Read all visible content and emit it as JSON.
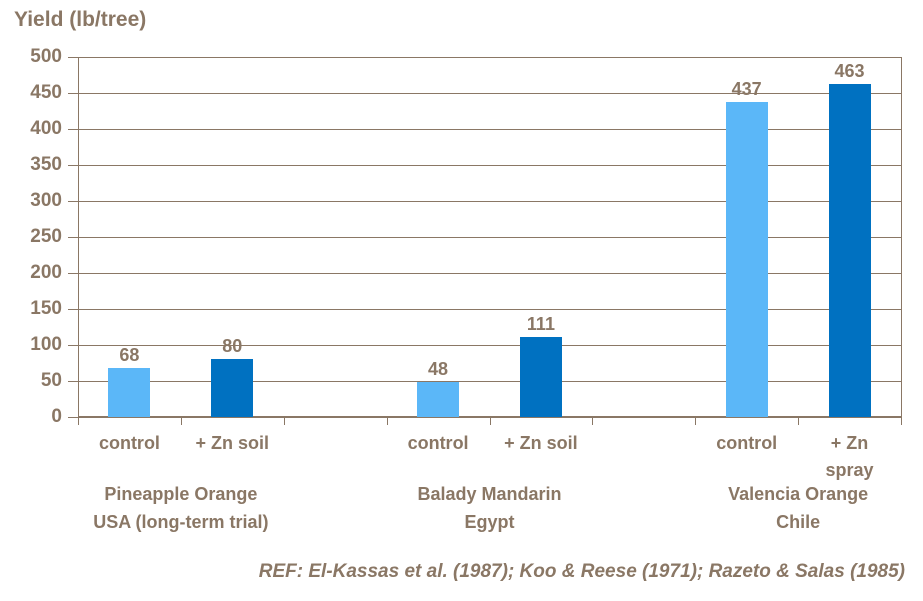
{
  "chart_data": {
    "type": "bar",
    "title": "Yield (lb/tree)",
    "ylabel": "Yield (lb/tree)",
    "ylim": [
      0,
      500
    ],
    "ytick_step": 50,
    "grid": true,
    "legend": "none",
    "footer": "REF: El-Kassas et al. (1987); Koo & Reese (1971); Razeto & Salas (1985)",
    "colors": {
      "control_bar": "#5BB7F8",
      "zinc_bar": "#0071C1",
      "text": "#8A7765",
      "line": "#8A7765"
    },
    "groups": [
      {
        "label_lines": [
          "Pineapple Orange",
          "USA (long-term trial)"
        ],
        "bars": [
          {
            "category_lines": [
              "control"
            ],
            "value": 68,
            "series": "control_bar"
          },
          {
            "category_lines": [
              "+ Zn soil"
            ],
            "value": 80,
            "series": "zinc_bar"
          }
        ]
      },
      {
        "label_lines": [
          "Balady Mandarin",
          "Egypt"
        ],
        "bars": [
          {
            "category_lines": [
              "control"
            ],
            "value": 48,
            "series": "control_bar"
          },
          {
            "category_lines": [
              "+ Zn soil"
            ],
            "value": 111,
            "series": "zinc_bar"
          }
        ]
      },
      {
        "label_lines": [
          "Valencia Orange",
          "Chile"
        ],
        "bars": [
          {
            "category_lines": [
              "control"
            ],
            "value": 437,
            "series": "control_bar"
          },
          {
            "category_lines": [
              "+ Zn",
              "spray"
            ],
            "value": 463,
            "series": "zinc_bar"
          }
        ]
      }
    ]
  }
}
